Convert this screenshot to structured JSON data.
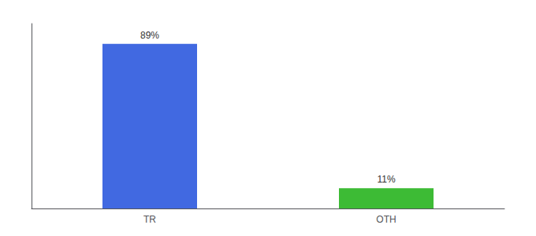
{
  "chart_data": {
    "type": "bar",
    "categories": [
      "TR",
      "OTH"
    ],
    "values": [
      89,
      11
    ],
    "value_labels": [
      "89%",
      "11%"
    ],
    "colors": [
      "#4169e1",
      "#3dbb35"
    ],
    "data_labels": true,
    "ylim": [
      0,
      100
    ],
    "tick_labels": "x",
    "grid": false
  }
}
